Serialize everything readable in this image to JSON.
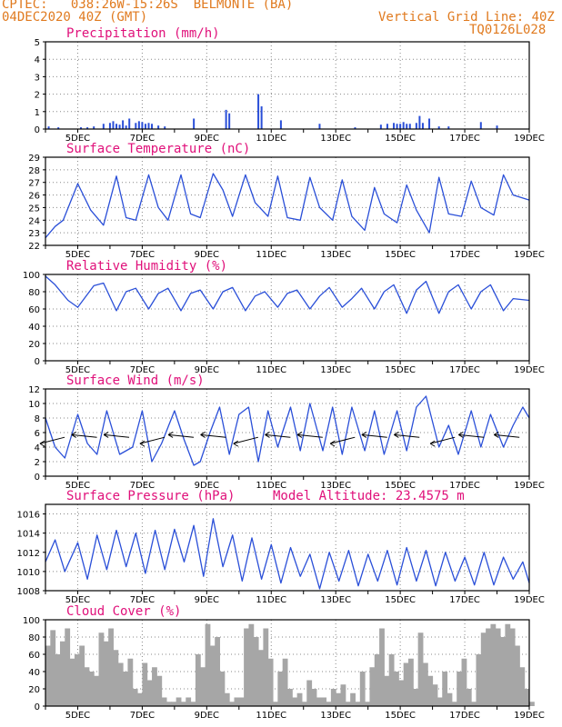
{
  "header": {
    "left_line1": "CPTEC:   038:26W-15:26S  BELMONTE (BA)",
    "left_line2": "04DEC2020 40Z (GMT)",
    "right_line1": "Vertical Grid Line: 40Z",
    "right_line2": "TQ0126L028"
  },
  "colors": {
    "header": "#e07a1f",
    "title": "#e0107a",
    "line": "#2a4fd8",
    "cloud": "#a6a6a6"
  },
  "chart_data": [
    {
      "type": "bar",
      "title": "Precipitation (mm/h)",
      "ylim": [
        0,
        5
      ],
      "yticks": [
        0,
        1,
        2,
        3,
        4,
        5
      ],
      "x_tick_labels": [
        "5DEC",
        "7DEC",
        "9DEC",
        "11DEC",
        "13DEC",
        "15DEC",
        "17DEC",
        "19DEC"
      ],
      "x_range_days": [
        4,
        19
      ],
      "series": [
        {
          "x": [
            4.1,
            4.4,
            5.1,
            5.3,
            5.5,
            5.8,
            6.0,
            6.1,
            6.2,
            6.3,
            6.4,
            6.5,
            6.6,
            6.8,
            6.9,
            7.0,
            7.1,
            7.2,
            7.3,
            7.5,
            7.7,
            8.6,
            9.6,
            9.7,
            10.6,
            10.7,
            11.3,
            12.5,
            13.6,
            14.4,
            14.6,
            14.8,
            14.9,
            15.0,
            15.1,
            15.2,
            15.3,
            15.5,
            15.6,
            15.7,
            15.9,
            16.2,
            16.5,
            17.5,
            18.0
          ],
          "values": [
            0.15,
            0.1,
            0.1,
            0.1,
            0.15,
            0.3,
            0.35,
            0.45,
            0.3,
            0.25,
            0.5,
            0.2,
            0.6,
            0.35,
            0.45,
            0.4,
            0.3,
            0.35,
            0.3,
            0.2,
            0.15,
            0.6,
            1.1,
            0.9,
            2.0,
            1.3,
            0.5,
            0.3,
            0.1,
            0.25,
            0.3,
            0.35,
            0.3,
            0.3,
            0.4,
            0.3,
            0.3,
            0.35,
            0.75,
            0.35,
            0.6,
            0.15,
            0.15,
            0.4,
            0.2
          ]
        }
      ]
    },
    {
      "type": "line",
      "title": "Surface Temperature (nC)",
      "ylim": [
        22,
        29
      ],
      "yticks": [
        22,
        23,
        24,
        25,
        26,
        27,
        28,
        29
      ],
      "x_tick_labels": [
        "5DEC",
        "7DEC",
        "9DEC",
        "11DEC",
        "13DEC",
        "15DEC",
        "17DEC",
        "19DEC"
      ],
      "x_range_days": [
        4,
        19
      ],
      "series": [
        {
          "x": [
            4.0,
            4.3,
            4.55,
            5.0,
            5.4,
            5.8,
            6.2,
            6.5,
            6.8,
            7.2,
            7.5,
            7.8,
            8.2,
            8.5,
            8.8,
            9.2,
            9.5,
            9.8,
            10.2,
            10.5,
            10.9,
            11.2,
            11.5,
            11.9,
            12.2,
            12.5,
            12.9,
            13.2,
            13.5,
            13.9,
            14.2,
            14.5,
            14.9,
            15.2,
            15.5,
            15.9,
            16.2,
            16.5,
            16.9,
            17.2,
            17.5,
            17.9,
            18.2,
            18.5,
            19.0
          ],
          "values": [
            22.6,
            23.5,
            24.0,
            26.9,
            24.8,
            23.6,
            27.5,
            24.2,
            24.0,
            27.6,
            25.0,
            24.0,
            27.6,
            24.5,
            24.2,
            27.7,
            26.4,
            24.3,
            27.6,
            25.4,
            24.3,
            27.5,
            24.2,
            24.0,
            27.4,
            25.0,
            24.0,
            27.2,
            24.3,
            23.2,
            26.6,
            24.5,
            23.8,
            26.8,
            24.8,
            23.0,
            27.4,
            24.5,
            24.3,
            27.1,
            25.0,
            24.4,
            27.6,
            26.0,
            25.6
          ]
        }
      ]
    },
    {
      "type": "line",
      "title": "Relative Humidity (%)",
      "ylim": [
        0,
        100
      ],
      "yticks": [
        0,
        20,
        40,
        60,
        80,
        100
      ],
      "x_tick_labels": [
        "5DEC",
        "7DEC",
        "9DEC",
        "11DEC",
        "13DEC",
        "15DEC",
        "17DEC",
        "19DEC"
      ],
      "x_range_days": [
        4,
        19
      ],
      "series": [
        {
          "x": [
            4.0,
            4.3,
            4.7,
            5.0,
            5.5,
            5.8,
            6.2,
            6.5,
            6.8,
            7.2,
            7.5,
            7.8,
            8.2,
            8.5,
            8.8,
            9.2,
            9.5,
            9.8,
            10.2,
            10.5,
            10.8,
            11.2,
            11.5,
            11.8,
            12.2,
            12.5,
            12.8,
            13.2,
            13.5,
            13.8,
            14.2,
            14.5,
            14.8,
            15.2,
            15.5,
            15.8,
            16.2,
            16.5,
            16.8,
            17.2,
            17.5,
            17.8,
            18.2,
            18.5,
            19.0
          ],
          "values": [
            98,
            88,
            70,
            62,
            87,
            90,
            58,
            80,
            84,
            60,
            78,
            84,
            58,
            78,
            82,
            60,
            80,
            85,
            58,
            75,
            80,
            62,
            78,
            82,
            60,
            75,
            85,
            62,
            72,
            84,
            60,
            80,
            88,
            55,
            82,
            92,
            55,
            80,
            88,
            60,
            80,
            88,
            58,
            72,
            70
          ]
        }
      ]
    },
    {
      "type": "line",
      "title": "Surface Wind (m/s)",
      "ylim": [
        0,
        12
      ],
      "yticks": [
        0,
        2,
        4,
        6,
        8,
        10,
        12
      ],
      "x_tick_labels": [
        "5DEC",
        "7DEC",
        "9DEC",
        "11DEC",
        "13DEC",
        "15DEC",
        "17DEC",
        "19DEC"
      ],
      "x_range_days": [
        4,
        19
      ],
      "series": [
        {
          "x": [
            4.0,
            4.3,
            4.6,
            5.0,
            5.3,
            5.6,
            5.9,
            6.3,
            6.7,
            7.0,
            7.3,
            7.6,
            8.0,
            8.3,
            8.6,
            8.8,
            9.1,
            9.4,
            9.7,
            10.0,
            10.3,
            10.6,
            10.9,
            11.2,
            11.6,
            11.9,
            12.2,
            12.6,
            12.9,
            13.2,
            13.5,
            13.9,
            14.2,
            14.5,
            14.9,
            15.2,
            15.5,
            15.8,
            16.2,
            16.5,
            16.8,
            17.2,
            17.5,
            17.8,
            18.2,
            18.5,
            18.8,
            19.0
          ],
          "values": [
            8.0,
            4.0,
            2.5,
            8.5,
            4.5,
            3.0,
            9.0,
            3.0,
            4.0,
            9.0,
            2.0,
            4.5,
            9.0,
            5.0,
            1.5,
            2.0,
            6.0,
            9.5,
            3.0,
            8.5,
            9.5,
            2.0,
            9.0,
            4.0,
            9.5,
            3.5,
            10.0,
            3.5,
            9.5,
            3.0,
            9.5,
            3.5,
            9.0,
            3.0,
            9.0,
            3.5,
            9.5,
            11.0,
            4.0,
            7.0,
            3.0,
            9.0,
            4.0,
            8.5,
            4.0,
            7.0,
            9.5,
            8.0
          ]
        }
      ]
    },
    {
      "type": "line",
      "title": "Surface Pressure (hPa)",
      "annotation": "Model Altitude: 23.4575 m",
      "ylim": [
        1008,
        1017
      ],
      "yticks": [
        1008,
        1010,
        1012,
        1014,
        1016
      ],
      "x_tick_labels": [
        "5DEC",
        "7DEC",
        "9DEC",
        "11DEC",
        "13DEC",
        "15DEC",
        "17DEC",
        "19DEC"
      ],
      "x_range_days": [
        4,
        19
      ],
      "series": [
        {
          "x": [
            4.0,
            4.3,
            4.6,
            5.0,
            5.3,
            5.6,
            5.9,
            6.2,
            6.5,
            6.8,
            7.1,
            7.4,
            7.7,
            8.0,
            8.3,
            8.6,
            8.9,
            9.2,
            9.5,
            9.8,
            10.1,
            10.4,
            10.7,
            11.0,
            11.3,
            11.6,
            11.9,
            12.2,
            12.5,
            12.8,
            13.1,
            13.4,
            13.7,
            14.0,
            14.3,
            14.6,
            14.9,
            15.2,
            15.5,
            15.8,
            16.1,
            16.4,
            16.7,
            17.0,
            17.3,
            17.6,
            17.9,
            18.2,
            18.5,
            18.8,
            19.0
          ],
          "values": [
            1011.0,
            1013.3,
            1010.0,
            1013.0,
            1009.2,
            1013.8,
            1010.2,
            1014.3,
            1010.5,
            1014.0,
            1009.8,
            1014.3,
            1010.2,
            1014.4,
            1011.0,
            1014.8,
            1009.5,
            1015.5,
            1010.5,
            1013.8,
            1009.0,
            1013.5,
            1009.2,
            1012.8,
            1008.8,
            1012.5,
            1009.5,
            1011.8,
            1008.2,
            1012.0,
            1009.0,
            1012.2,
            1008.5,
            1011.8,
            1009.0,
            1012.2,
            1008.6,
            1012.5,
            1009.0,
            1012.2,
            1008.5,
            1012.0,
            1009.0,
            1011.5,
            1008.6,
            1012.0,
            1008.6,
            1011.5,
            1009.2,
            1011.0,
            1008.8
          ]
        }
      ]
    },
    {
      "type": "area",
      "title": "Cloud Cover (%)",
      "ylim": [
        0,
        100
      ],
      "yticks": [
        0,
        20,
        40,
        60,
        80,
        100
      ],
      "x_tick_labels": [
        "5DEC",
        "7DEC",
        "9DEC",
        "11DEC",
        "13DEC",
        "15DEC",
        "17DEC",
        "19DEC"
      ],
      "x_range_days": [
        4,
        19
      ],
      "series": [
        {
          "x": [
            4.0,
            4.15,
            4.3,
            4.45,
            4.6,
            4.75,
            4.9,
            5.05,
            5.2,
            5.35,
            5.5,
            5.65,
            5.8,
            5.95,
            6.1,
            6.25,
            6.4,
            6.55,
            6.7,
            6.85,
            7.0,
            7.15,
            7.3,
            7.45,
            7.6,
            7.75,
            7.9,
            8.05,
            8.2,
            8.35,
            8.5,
            8.65,
            8.8,
            8.95,
            9.1,
            9.25,
            9.4,
            9.55,
            9.7,
            9.85,
            10.0,
            10.15,
            10.3,
            10.45,
            10.6,
            10.75,
            10.9,
            11.05,
            11.2,
            11.35,
            11.5,
            11.65,
            11.8,
            11.95,
            12.1,
            12.25,
            12.4,
            12.55,
            12.7,
            12.85,
            13.0,
            13.15,
            13.3,
            13.45,
            13.6,
            13.75,
            13.9,
            14.05,
            14.2,
            14.35,
            14.5,
            14.65,
            14.8,
            14.95,
            15.1,
            15.25,
            15.4,
            15.55,
            15.7,
            15.85,
            16.0,
            16.15,
            16.3,
            16.45,
            16.6,
            16.75,
            16.9,
            17.05,
            17.2,
            17.35,
            17.5,
            17.65,
            17.8,
            17.95,
            18.1,
            18.25,
            18.4,
            18.55,
            18.7,
            18.85,
            19.0
          ],
          "values": [
            70,
            88,
            60,
            75,
            90,
            55,
            60,
            70,
            45,
            40,
            35,
            85,
            75,
            90,
            65,
            50,
            40,
            55,
            20,
            15,
            50,
            30,
            45,
            35,
            10,
            5,
            5,
            10,
            5,
            10,
            5,
            60,
            45,
            95,
            70,
            80,
            40,
            15,
            5,
            10,
            10,
            90,
            95,
            80,
            65,
            90,
            55,
            5,
            40,
            55,
            20,
            10,
            15,
            5,
            30,
            20,
            10,
            10,
            5,
            20,
            15,
            25,
            5,
            15,
            5,
            40,
            5,
            45,
            60,
            90,
            35,
            60,
            40,
            30,
            50,
            55,
            20,
            85,
            50,
            35,
            25,
            10,
            40,
            15,
            5,
            40,
            55,
            20,
            5,
            60,
            85,
            90,
            95,
            90,
            80,
            95,
            90,
            70,
            45,
            20,
            5
          ]
        }
      ]
    }
  ]
}
